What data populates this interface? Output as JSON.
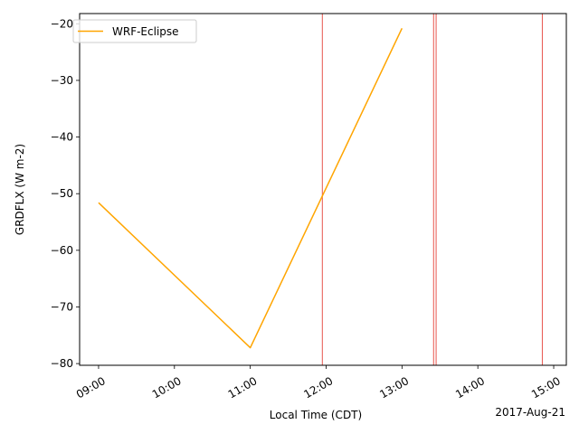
{
  "chart_data": {
    "type": "line",
    "xlabel": "Local Time (CDT)",
    "ylabel": "GRDFLX (W m-2)",
    "date_label": "2017-Aug-21",
    "xlim": [
      "08:45",
      "15:10"
    ],
    "ylim": [
      -80.3,
      -18.2
    ],
    "x_ticks": [
      "09:00",
      "10:00",
      "11:00",
      "12:00",
      "13:00",
      "14:00",
      "15:00"
    ],
    "y_ticks": [
      -20,
      -30,
      -40,
      -50,
      -60,
      -70,
      -80
    ],
    "legend_position": "upper-left",
    "grid": false,
    "series": [
      {
        "name": "WRF-Eclipse",
        "color": "#ffa500",
        "x": [
          "09:00",
          "11:00",
          "13:00"
        ],
        "y": [
          -51.6,
          -77.2,
          -20.8
        ]
      }
    ],
    "vertical_markers": {
      "color": "#e8554e",
      "x": [
        "11:57",
        "13:25",
        "13:27",
        "14:51"
      ]
    }
  }
}
